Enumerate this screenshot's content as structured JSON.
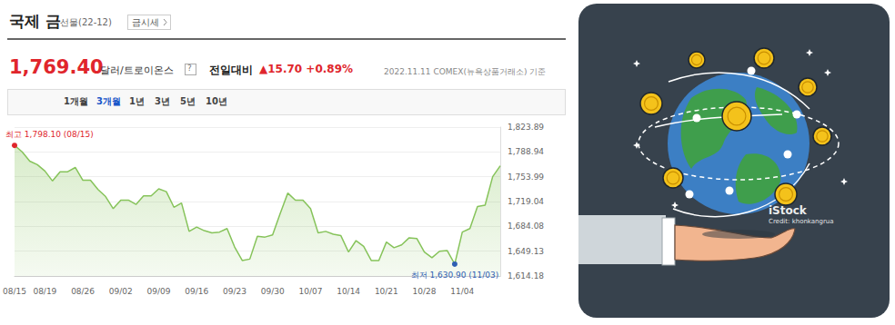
{
  "header": {
    "title": "국제 금",
    "subtitle": "선물(22-12)",
    "button": "금시세",
    "price": "1,769.40",
    "unit": "달러/트로이온스",
    "help": "?",
    "change_label": "전일대비",
    "change": "▲15.70",
    "change_pct": "+0.89%",
    "source": "2022.11.11 COMEX(뉴욕상품거래소) 기준"
  },
  "tabs": [
    "1개월",
    "3개월",
    "1년",
    "3년",
    "5년",
    "10년"
  ],
  "selected_tab": "3개월",
  "chart_data": {
    "type": "line",
    "color": "#86c35a",
    "grid": true,
    "tick_labels": true,
    "categories": [
      "08/15",
      null,
      null,
      null,
      "08/19",
      null,
      null,
      null,
      null,
      "08/26",
      null,
      null,
      null,
      null,
      "09/02",
      null,
      null,
      null,
      null,
      "09/09",
      null,
      null,
      null,
      null,
      "09/16",
      null,
      null,
      null,
      null,
      "09/23",
      null,
      null,
      null,
      null,
      "09/30",
      null,
      null,
      null,
      null,
      "10/07",
      null,
      null,
      null,
      null,
      "10/14",
      null,
      null,
      null,
      null,
      "10/21",
      null,
      null,
      null,
      null,
      "10/28",
      null,
      null,
      null,
      null,
      "11/04",
      null,
      null,
      null,
      null,
      null
    ],
    "values": [
      1798.1,
      1789,
      1776,
      1771,
      1762,
      1748,
      1761,
      1761,
      1767,
      1749,
      1749,
      1736,
      1726,
      1709,
      1721,
      1721,
      1715,
      1727,
      1727,
      1737,
      1733,
      1711,
      1717,
      1677,
      1683,
      1678,
      1675,
      1676,
      1681,
      1655,
      1636,
      1638,
      1670,
      1669,
      1672,
      1702,
      1731,
      1721,
      1721,
      1709,
      1675,
      1677,
      1673,
      1671,
      1648,
      1664,
      1656,
      1636,
      1636,
      1662,
      1654,
      1658,
      1668,
      1667,
      1648,
      1640,
      1649,
      1650,
      1630.9,
      1676,
      1681,
      1712,
      1714,
      1754,
      1769.4
    ],
    "ylim": [
      1614.18,
      1823.89
    ],
    "yticks": [
      {
        "value": 1614.18,
        "label": "1,614.18"
      },
      {
        "value": 1649.13,
        "label": "1,649.13"
      },
      {
        "value": 1684.08,
        "label": "1,684.08"
      },
      {
        "value": 1719.04,
        "label": "1,719.04"
      },
      {
        "value": 1753.99,
        "label": "1,753.99"
      },
      {
        "value": 1788.94,
        "label": "1,788.94"
      },
      {
        "value": 1823.89,
        "label": "1,823.89"
      }
    ],
    "annotations": [
      {
        "text": "최고 1,798.10 (08/15)",
        "y": 1798.1,
        "color": "#e0262c"
      },
      {
        "text": "최저 1,630.90 (11/03)",
        "y": 1630.9,
        "color": "#2f5fb3"
      }
    ]
  },
  "illustration": {
    "watermark": "iStock",
    "credit": "Credit: khonkangrua"
  }
}
